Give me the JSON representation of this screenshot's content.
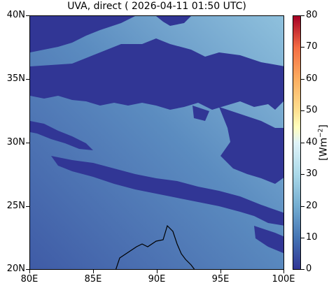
{
  "title": "UVA, direct ( 2026-04-11 01:50 UTC)",
  "map": {
    "lon_range": [
      80,
      100
    ],
    "lat_range": [
      20,
      40
    ],
    "x_ticks": [
      "80E",
      "85E",
      "90E",
      "95E",
      "100E"
    ],
    "y_ticks": [
      "40N",
      "35N",
      "30N",
      "25N",
      "20N"
    ],
    "cloud_color": "#313695",
    "clear_sky_gradient": [
      "#3f5ba6",
      "#5b8cc0",
      "#8fc1dd"
    ],
    "coastline_color": "#000000"
  },
  "colorbar": {
    "range": [
      0,
      80
    ],
    "ticks": [
      "80",
      "70",
      "60",
      "50",
      "40",
      "30",
      "20",
      "10",
      "0"
    ],
    "unit_prefix": "[Wm",
    "unit_exp": "−2",
    "unit_suffix": "]",
    "colormap": "RdYlBu_r"
  }
}
